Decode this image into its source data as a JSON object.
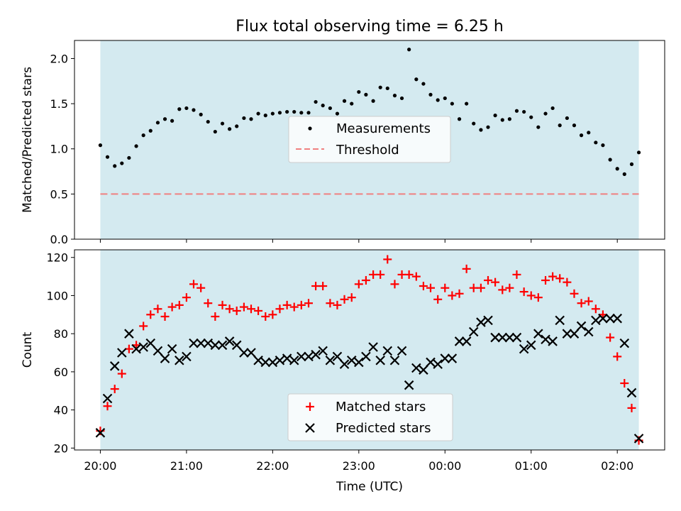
{
  "title": "Flux total observing time = 6.25 h",
  "xlabel": "Time (UTC)",
  "x_tick_labels": [
    "20:00",
    "21:00",
    "22:00",
    "23:00",
    "00:00",
    "01:00",
    "02:00"
  ],
  "colors": {
    "background_band": "#d4eaf0",
    "measurement": "#000000",
    "threshold": "#f08080",
    "matched": "#ff0000",
    "predicted": "#000000"
  },
  "chart_data": [
    {
      "type": "scatter",
      "ylabel": "Matched/Predicted stars",
      "xlim": [
        -0.3,
        6.55
      ],
      "ylim": [
        0,
        2.2
      ],
      "y_ticks": [
        0.0,
        0.5,
        1.0,
        1.5,
        2.0
      ],
      "y_tick_labels": [
        "0.0",
        "0.5",
        "1.0",
        "1.5",
        "2.0"
      ],
      "shaded_span": [
        0,
        6.25
      ],
      "legend": {
        "position": "center",
        "entries": [
          "Measurements",
          "Threshold"
        ]
      },
      "threshold": 0.5,
      "series": [
        {
          "name": "Measurements",
          "x": [
            0.0,
            0.083,
            0.167,
            0.25,
            0.333,
            0.417,
            0.5,
            0.583,
            0.667,
            0.75,
            0.833,
            0.917,
            1.0,
            1.083,
            1.167,
            1.25,
            1.333,
            1.417,
            1.5,
            1.583,
            1.667,
            1.75,
            1.833,
            1.917,
            2.0,
            2.083,
            2.167,
            2.25,
            2.333,
            2.417,
            2.5,
            2.583,
            2.667,
            2.75,
            2.833,
            2.917,
            3.0,
            3.083,
            3.167,
            3.25,
            3.333,
            3.417,
            3.5,
            3.583,
            3.667,
            3.75,
            3.833,
            3.917,
            4.0,
            4.083,
            4.167,
            4.25,
            4.333,
            4.417,
            4.5,
            4.583,
            4.667,
            4.75,
            4.833,
            4.917,
            5.0,
            5.083,
            5.167,
            5.25,
            5.333,
            5.417,
            5.5,
            5.583,
            5.667,
            5.75,
            5.833,
            5.917,
            6.0,
            6.083,
            6.167,
            6.25
          ],
          "y": [
            1.04,
            0.91,
            0.81,
            0.84,
            0.9,
            1.03,
            1.15,
            1.2,
            1.29,
            1.33,
            1.31,
            1.44,
            1.45,
            1.43,
            1.38,
            1.3,
            1.19,
            1.28,
            1.22,
            1.25,
            1.34,
            1.33,
            1.39,
            1.37,
            1.39,
            1.4,
            1.41,
            1.41,
            1.4,
            1.4,
            1.52,
            1.48,
            1.45,
            1.39,
            1.53,
            1.5,
            1.63,
            1.6,
            1.53,
            1.68,
            1.67,
            1.59,
            1.56,
            2.1,
            1.77,
            1.72,
            1.6,
            1.54,
            1.56,
            1.5,
            1.33,
            1.5,
            1.28,
            1.21,
            1.24,
            1.37,
            1.32,
            1.33,
            1.42,
            1.41,
            1.35,
            1.24,
            1.39,
            1.45,
            1.26,
            1.34,
            1.26,
            1.15,
            1.18,
            1.07,
            1.04,
            0.88,
            0.78,
            0.72,
            0.83,
            0.96
          ]
        }
      ]
    },
    {
      "type": "scatter",
      "ylabel": "Count",
      "xlim": [
        -0.3,
        6.55
      ],
      "ylim": [
        19,
        124
      ],
      "y_ticks": [
        20,
        40,
        60,
        80,
        100,
        120
      ],
      "y_tick_labels": [
        "20",
        "40",
        "60",
        "80",
        "100",
        "120"
      ],
      "shaded_span": [
        0,
        6.25
      ],
      "legend": {
        "position": "bottom-center",
        "entries": [
          "Matched stars",
          "Predicted stars"
        ]
      },
      "series": [
        {
          "name": "Matched stars",
          "x": [
            0.0,
            0.083,
            0.167,
            0.25,
            0.333,
            0.417,
            0.5,
            0.583,
            0.667,
            0.75,
            0.833,
            0.917,
            1.0,
            1.083,
            1.167,
            1.25,
            1.333,
            1.417,
            1.5,
            1.583,
            1.667,
            1.75,
            1.833,
            1.917,
            2.0,
            2.083,
            2.167,
            2.25,
            2.333,
            2.417,
            2.5,
            2.583,
            2.667,
            2.75,
            2.833,
            2.917,
            3.0,
            3.083,
            3.167,
            3.25,
            3.333,
            3.417,
            3.5,
            3.583,
            3.667,
            3.75,
            3.833,
            3.917,
            4.0,
            4.083,
            4.167,
            4.25,
            4.333,
            4.417,
            4.5,
            4.583,
            4.667,
            4.75,
            4.833,
            4.917,
            5.0,
            5.083,
            5.167,
            5.25,
            5.333,
            5.417,
            5.5,
            5.583,
            5.667,
            5.75,
            5.833,
            5.917,
            6.0,
            6.083,
            6.167,
            6.25
          ],
          "values": [
            29,
            42,
            51,
            59,
            72,
            74,
            84,
            90,
            93,
            89,
            94,
            95,
            99,
            106,
            104,
            96,
            89,
            95,
            93,
            92,
            94,
            93,
            92,
            89,
            90,
            93,
            95,
            94,
            95,
            96,
            105,
            105,
            96,
            95,
            98,
            99,
            106,
            108,
            111,
            111,
            119,
            106,
            111,
            111,
            110,
            105,
            104,
            98,
            104,
            100,
            101,
            114,
            104,
            104,
            108,
            107,
            103,
            104,
            111,
            102,
            100,
            99,
            108,
            110,
            109,
            107,
            101,
            96,
            97,
            93,
            90,
            78,
            68,
            54,
            41,
            24
          ]
        },
        {
          "name": "Predicted stars",
          "x": [
            0.0,
            0.083,
            0.167,
            0.25,
            0.333,
            0.417,
            0.5,
            0.583,
            0.667,
            0.75,
            0.833,
            0.917,
            1.0,
            1.083,
            1.167,
            1.25,
            1.333,
            1.417,
            1.5,
            1.583,
            1.667,
            1.75,
            1.833,
            1.917,
            2.0,
            2.083,
            2.167,
            2.25,
            2.333,
            2.417,
            2.5,
            2.583,
            2.667,
            2.75,
            2.833,
            2.917,
            3.0,
            3.083,
            3.167,
            3.25,
            3.333,
            3.417,
            3.5,
            3.583,
            3.667,
            3.75,
            3.833,
            3.917,
            4.0,
            4.083,
            4.167,
            4.25,
            4.333,
            4.417,
            4.5,
            4.583,
            4.667,
            4.75,
            4.833,
            4.917,
            5.0,
            5.083,
            5.167,
            5.25,
            5.333,
            5.417,
            5.5,
            5.583,
            5.667,
            5.75,
            5.833,
            5.917,
            6.0,
            6.083,
            6.167,
            6.25
          ],
          "values": [
            28,
            46,
            63,
            70,
            80,
            72,
            73,
            75,
            71,
            67,
            72,
            66,
            68,
            75,
            75,
            75,
            74,
            74,
            76,
            74,
            70,
            70,
            66,
            65,
            65,
            66,
            67,
            66,
            68,
            68,
            69,
            71,
            66,
            68,
            64,
            66,
            65,
            68,
            73,
            66,
            71,
            66,
            71,
            53,
            62,
            61,
            65,
            64,
            67,
            67,
            76,
            76,
            81,
            86,
            87,
            78,
            78,
            78,
            78,
            72,
            74,
            80,
            77,
            76,
            87,
            80,
            80,
            84,
            81,
            87,
            88,
            88,
            88,
            75,
            49,
            25
          ]
        }
      ]
    }
  ]
}
